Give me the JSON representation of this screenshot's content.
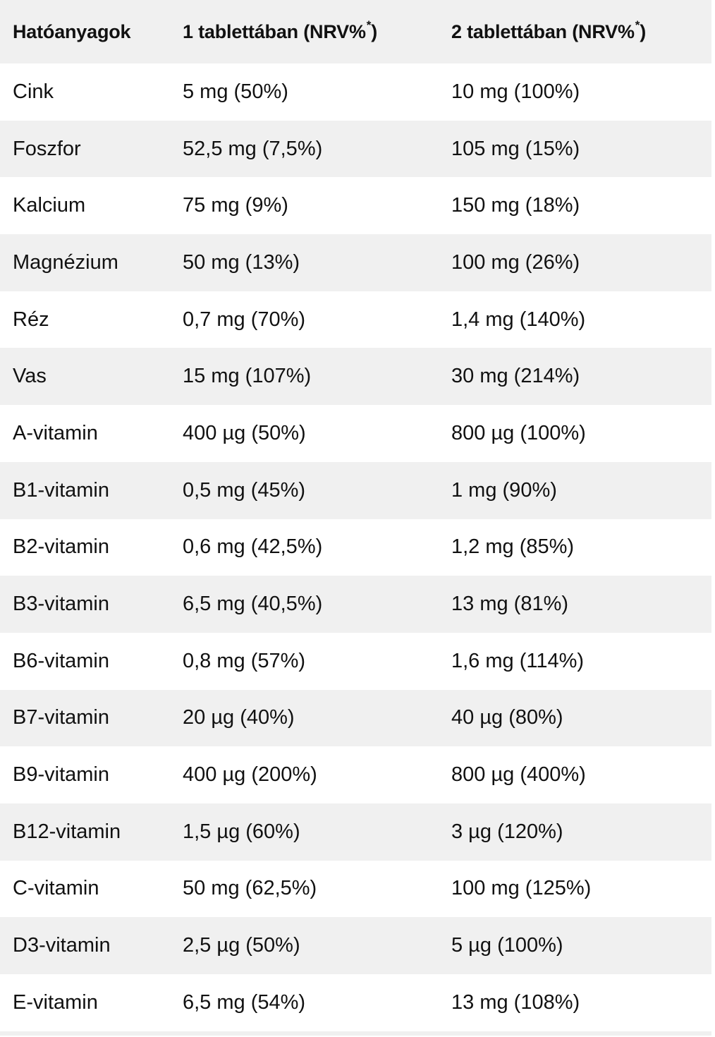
{
  "header": [
    {
      "text": "Hatóanyagok",
      "sup": ""
    },
    {
      "text": "1 tablettában (NRV%",
      "sup": "*",
      "close": ")"
    },
    {
      "text": "2 tablettában (NRV%",
      "sup": "*",
      "close": ")"
    }
  ],
  "rows": [
    [
      "Cink",
      "5 mg (50%)",
      "10 mg (100%)"
    ],
    [
      "Foszfor",
      "52,5 mg (7,5%)",
      "105 mg (15%)"
    ],
    [
      "Kalcium",
      "75 mg (9%)",
      "150 mg (18%)"
    ],
    [
      "Magnézium",
      "50 mg (13%)",
      "100 mg (26%)"
    ],
    [
      "Réz",
      "0,7 mg (70%)",
      "1,4 mg (140%)"
    ],
    [
      "Vas",
      "15 mg (107%)",
      "30 mg (214%)"
    ],
    [
      "A-vitamin",
      "400 µg (50%)",
      "800 µg (100%)"
    ],
    [
      "B1-vitamin",
      "0,5 mg (45%)",
      "1 mg (90%)"
    ],
    [
      "B2-vitamin",
      "0,6 mg (42,5%)",
      "1,2 mg (85%)"
    ],
    [
      "B3-vitamin",
      "6,5 mg (40,5%)",
      "13 mg (81%)"
    ],
    [
      "B6-vitamin",
      "0,8 mg (57%)",
      "1,6 mg (114%)"
    ],
    [
      "B7-vitamin",
      "20 µg (40%)",
      "40 µg (80%)"
    ],
    [
      "B9-vitamin",
      "400 µg (200%)",
      "800 µg (400%)"
    ],
    [
      "B12-vitamin",
      "1,5 µg (60%)",
      "3 µg (120%)"
    ],
    [
      "C-vitamin",
      "50 mg (62,5%)",
      "100 mg (125%)"
    ],
    [
      "D3-vitamin",
      "2,5 µg (50%)",
      "5 µg (100%)"
    ],
    [
      "E-vitamin",
      "6,5 mg (54%)",
      "13 mg (108%)"
    ]
  ]
}
